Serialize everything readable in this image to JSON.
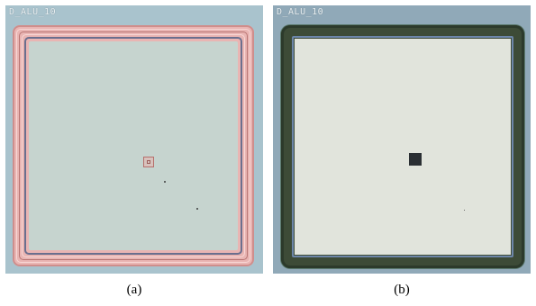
{
  "panels": [
    {
      "chip_label": "D_ALU_10",
      "caption": "(a)"
    },
    {
      "chip_label": "D_ALU_10",
      "caption": "(b)"
    }
  ],
  "colors": {
    "frame_a": "#e9b5b3",
    "membrane_a": "#c6d4cf",
    "frame_b": "#3d4b37",
    "membrane_b": "#e1e4dc"
  }
}
